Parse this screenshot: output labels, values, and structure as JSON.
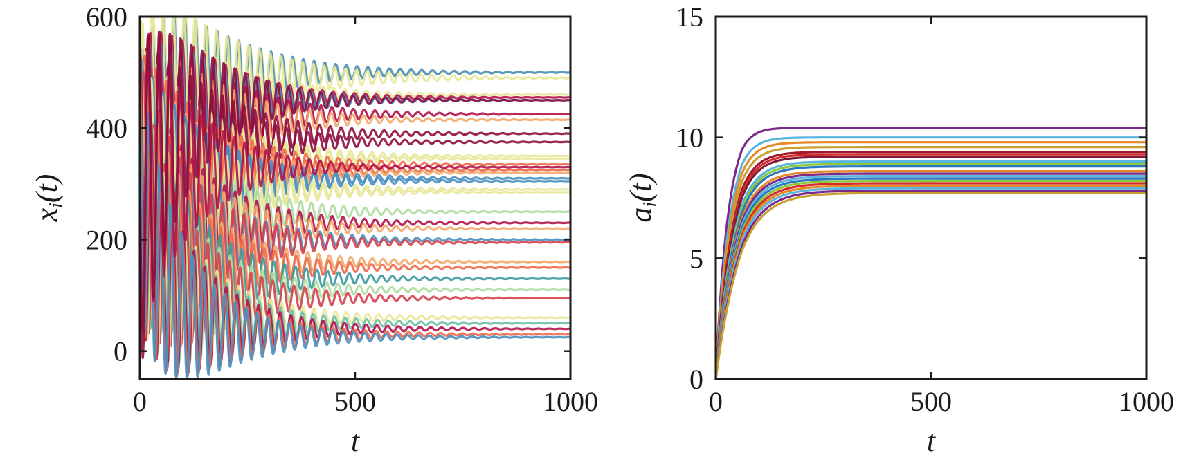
{
  "chart_data": [
    {
      "type": "line",
      "title": "",
      "xlabel": "t",
      "ylabel": {
        "base": "x",
        "sub": "i",
        "arg": "(t)"
      },
      "xlim": [
        0,
        1000
      ],
      "ylim": [
        -50,
        600
      ],
      "xticks": [
        0,
        500,
        1000
      ],
      "yticks": [
        0,
        200,
        400,
        600
      ],
      "grid": false,
      "legend": "none",
      "series_description": "Oscillating trajectories converging to fixed levels",
      "series": [
        {
          "color": "#e8e89a",
          "start": 300,
          "final": 500,
          "amp": 280,
          "decay": 150,
          "period": 25,
          "phase": 0.0
        },
        {
          "color": "#4a8fc0",
          "start": 280,
          "final": 500,
          "amp": 260,
          "decay": 160,
          "period": 25,
          "phase": 0.4
        },
        {
          "color": "#e8e89a",
          "start": 320,
          "final": 490,
          "amp": 270,
          "decay": 170,
          "period": 25,
          "phase": 0.9
        },
        {
          "color": "#e8e89a",
          "start": 310,
          "final": 460,
          "amp": 240,
          "decay": 150,
          "period": 25,
          "phase": 1.3
        },
        {
          "color": "#b3124a",
          "start": 290,
          "final": 455,
          "amp": 270,
          "decay": 140,
          "period": 25,
          "phase": 1.8
        },
        {
          "color": "#4a8fc0",
          "start": 300,
          "final": 450,
          "amp": 240,
          "decay": 150,
          "period": 25,
          "phase": 2.2
        },
        {
          "color": "#b3124a",
          "start": 310,
          "final": 425,
          "amp": 260,
          "decay": 150,
          "period": 25,
          "phase": 2.6
        },
        {
          "color": "#f3a96a",
          "start": 300,
          "final": 415,
          "amp": 240,
          "decay": 150,
          "period": 25,
          "phase": 3.0
        },
        {
          "color": "#8e0e3e",
          "start": 290,
          "final": 390,
          "amp": 260,
          "decay": 150,
          "period": 25,
          "phase": 3.5
        },
        {
          "color": "#8e0e3e",
          "start": 300,
          "final": 375,
          "amp": 250,
          "decay": 150,
          "period": 25,
          "phase": 3.9
        },
        {
          "color": "#e8e89a",
          "start": 310,
          "final": 350,
          "amp": 240,
          "decay": 150,
          "period": 25,
          "phase": 4.3
        },
        {
          "color": "#e8e89a",
          "start": 300,
          "final": 345,
          "amp": 230,
          "decay": 150,
          "period": 25,
          "phase": 4.7
        },
        {
          "color": "#ee6a4a",
          "start": 290,
          "final": 335,
          "amp": 250,
          "decay": 150,
          "period": 25,
          "phase": 5.1
        },
        {
          "color": "#ee6a4a",
          "start": 300,
          "final": 325,
          "amp": 230,
          "decay": 150,
          "period": 25,
          "phase": 5.6
        },
        {
          "color": "#f3a96a",
          "start": 310,
          "final": 320,
          "amp": 220,
          "decay": 150,
          "period": 25,
          "phase": 6.0
        },
        {
          "color": "#4a8fc0",
          "start": 300,
          "final": 310,
          "amp": 230,
          "decay": 150,
          "period": 25,
          "phase": 0.2
        },
        {
          "color": "#4a8fc0",
          "start": 290,
          "final": 305,
          "amp": 230,
          "decay": 150,
          "period": 25,
          "phase": 0.7
        },
        {
          "color": "#e8e89a",
          "start": 300,
          "final": 290,
          "amp": 230,
          "decay": 150,
          "period": 25,
          "phase": 1.1
        },
        {
          "color": "#e8e89a",
          "start": 300,
          "final": 285,
          "amp": 220,
          "decay": 150,
          "period": 25,
          "phase": 1.6
        },
        {
          "color": "#b0dca0",
          "start": 290,
          "final": 250,
          "amp": 230,
          "decay": 150,
          "period": 25,
          "phase": 2.0
        },
        {
          "color": "#b3124a",
          "start": 300,
          "final": 230,
          "amp": 240,
          "decay": 150,
          "period": 25,
          "phase": 2.4
        },
        {
          "color": "#f3a96a",
          "start": 300,
          "final": 220,
          "amp": 230,
          "decay": 150,
          "period": 25,
          "phase": 2.8
        },
        {
          "color": "#4a8fc0",
          "start": 290,
          "final": 200,
          "amp": 230,
          "decay": 150,
          "period": 25,
          "phase": 3.3
        },
        {
          "color": "#d6404e",
          "start": 300,
          "final": 195,
          "amp": 240,
          "decay": 150,
          "period": 25,
          "phase": 3.7
        },
        {
          "color": "#f3a96a",
          "start": 300,
          "final": 160,
          "amp": 230,
          "decay": 150,
          "period": 25,
          "phase": 4.1
        },
        {
          "color": "#ee6a4a",
          "start": 290,
          "final": 150,
          "amp": 230,
          "decay": 150,
          "period": 25,
          "phase": 4.5
        },
        {
          "color": "#3d9a9e",
          "start": 300,
          "final": 130,
          "amp": 240,
          "decay": 150,
          "period": 25,
          "phase": 5.0
        },
        {
          "color": "#b0dca0",
          "start": 290,
          "final": 110,
          "amp": 230,
          "decay": 150,
          "period": 25,
          "phase": 5.4
        },
        {
          "color": "#d6404e",
          "start": 300,
          "final": 95,
          "amp": 240,
          "decay": 150,
          "period": 25,
          "phase": 5.8
        },
        {
          "color": "#e8e89a",
          "start": 290,
          "final": 60,
          "amp": 240,
          "decay": 150,
          "period": 25,
          "phase": 0.5
        },
        {
          "color": "#6cc0a4",
          "start": 300,
          "final": 50,
          "amp": 240,
          "decay": 150,
          "period": 25,
          "phase": 1.0
        },
        {
          "color": "#b3124a",
          "start": 300,
          "final": 40,
          "amp": 250,
          "decay": 150,
          "period": 25,
          "phase": 1.4
        },
        {
          "color": "#ee6a4a",
          "start": 290,
          "final": 30,
          "amp": 240,
          "decay": 150,
          "period": 25,
          "phase": 1.9
        },
        {
          "color": "#4a8fc0",
          "start": 300,
          "final": 25,
          "amp": 250,
          "decay": 150,
          "period": 25,
          "phase": 2.3
        },
        {
          "color": "#b3124a",
          "start": 310,
          "final": 330,
          "amp": 290,
          "decay": 130,
          "period": 25,
          "phase": 3.14
        },
        {
          "color": "#8e0e3e",
          "start": 250,
          "final": 450,
          "amp": 300,
          "decay": 140,
          "period": 25,
          "phase": 2.9
        }
      ]
    },
    {
      "type": "line",
      "title": "",
      "xlabel": "t",
      "ylabel": {
        "base": "a",
        "sub": "i",
        "arg": "(t)"
      },
      "xlim": [
        0,
        1000
      ],
      "ylim": [
        0,
        15
      ],
      "xticks": [
        0,
        500,
        1000
      ],
      "yticks": [
        0,
        5,
        10,
        15
      ],
      "grid": false,
      "legend": "none",
      "series_description": "Saturating curves rising from 0 to plateaus",
      "series": [
        {
          "color": "#7b2a8a",
          "final": 10.4,
          "tau": 25
        },
        {
          "color": "#5ab4de",
          "final": 10.0,
          "tau": 28
        },
        {
          "color": "#e58a2a",
          "final": 9.8,
          "tau": 30
        },
        {
          "color": "#c8a030",
          "final": 9.6,
          "tau": 32
        },
        {
          "color": "#a0182e",
          "final": 9.4,
          "tau": 34
        },
        {
          "color": "#d62a2a",
          "final": 9.3,
          "tau": 35
        },
        {
          "color": "#7c1a3a",
          "final": 9.2,
          "tau": 36
        },
        {
          "color": "#5ab4de",
          "final": 9.0,
          "tau": 38
        },
        {
          "color": "#8cc83c",
          "final": 8.9,
          "tau": 39
        },
        {
          "color": "#2a78c0",
          "final": 8.8,
          "tau": 40
        },
        {
          "color": "#e58a2a",
          "final": 8.6,
          "tau": 41
        },
        {
          "color": "#7b2a8a",
          "final": 8.5,
          "tau": 42
        },
        {
          "color": "#5ab4de",
          "final": 8.4,
          "tau": 43
        },
        {
          "color": "#2a78c0",
          "final": 8.3,
          "tau": 44
        },
        {
          "color": "#8cc83c",
          "final": 8.2,
          "tau": 45
        },
        {
          "color": "#d62a2a",
          "final": 8.1,
          "tau": 46
        },
        {
          "color": "#e58a2a",
          "final": 8.0,
          "tau": 47
        },
        {
          "color": "#5ab4de",
          "final": 7.9,
          "tau": 48
        },
        {
          "color": "#7b2a8a",
          "final": 7.8,
          "tau": 50
        },
        {
          "color": "#c8a030",
          "final": 7.7,
          "tau": 52
        }
      ]
    }
  ]
}
